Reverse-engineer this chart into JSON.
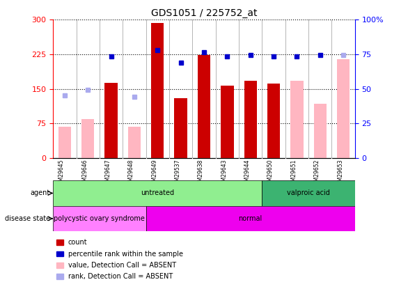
{
  "title": "GDS1051 / 225752_at",
  "samples": [
    "GSM29645",
    "GSM29646",
    "GSM29647",
    "GSM29648",
    "GSM29649",
    "GSM29537",
    "GSM29638",
    "GSM29643",
    "GSM29644",
    "GSM29650",
    "GSM29651",
    "GSM29652",
    "GSM29653"
  ],
  "count_values": [
    null,
    null,
    163,
    null,
    293,
    130,
    224,
    157,
    168,
    162,
    null,
    null,
    null
  ],
  "count_absent_values": [
    67,
    85,
    null,
    67,
    null,
    null,
    null,
    null,
    null,
    null,
    168,
    118,
    215
  ],
  "percentile_values": [
    null,
    null,
    220,
    null,
    234,
    207,
    230,
    220,
    224,
    220,
    220,
    224,
    null
  ],
  "percentile_absent_values": [
    135,
    148,
    null,
    132,
    null,
    null,
    null,
    null,
    null,
    null,
    null,
    null,
    224
  ],
  "ylim_left": [
    0,
    300
  ],
  "ylim_right": [
    0,
    100
  ],
  "yticks_left": [
    0,
    75,
    150,
    225,
    300
  ],
  "yticks_right": [
    0,
    25,
    50,
    75,
    100
  ],
  "agent_groups": [
    {
      "label": "untreated",
      "start": 0,
      "end": 9,
      "color": "#90EE90"
    },
    {
      "label": "valproic acid",
      "start": 9,
      "end": 13,
      "color": "#3CB371"
    }
  ],
  "disease_groups": [
    {
      "label": "polycystic ovary syndrome",
      "start": 0,
      "end": 4,
      "color": "#FF80FF"
    },
    {
      "label": "normal",
      "start": 4,
      "end": 13,
      "color": "#EE00EE"
    }
  ],
  "bar_color_red": "#CC0000",
  "bar_color_pink": "#FFB6C1",
  "dot_color_blue": "#0000CC",
  "dot_color_lightblue": "#AAAAEE",
  "bg_color": "#FFFFFF",
  "tick_area_color": "#CCCCCC",
  "legend_items": [
    {
      "color": "#CC0000",
      "label": "count"
    },
    {
      "color": "#0000CC",
      "label": "percentile rank within the sample"
    },
    {
      "color": "#FFB6C1",
      "label": "value, Detection Call = ABSENT"
    },
    {
      "color": "#AAAAEE",
      "label": "rank, Detection Call = ABSENT"
    }
  ]
}
